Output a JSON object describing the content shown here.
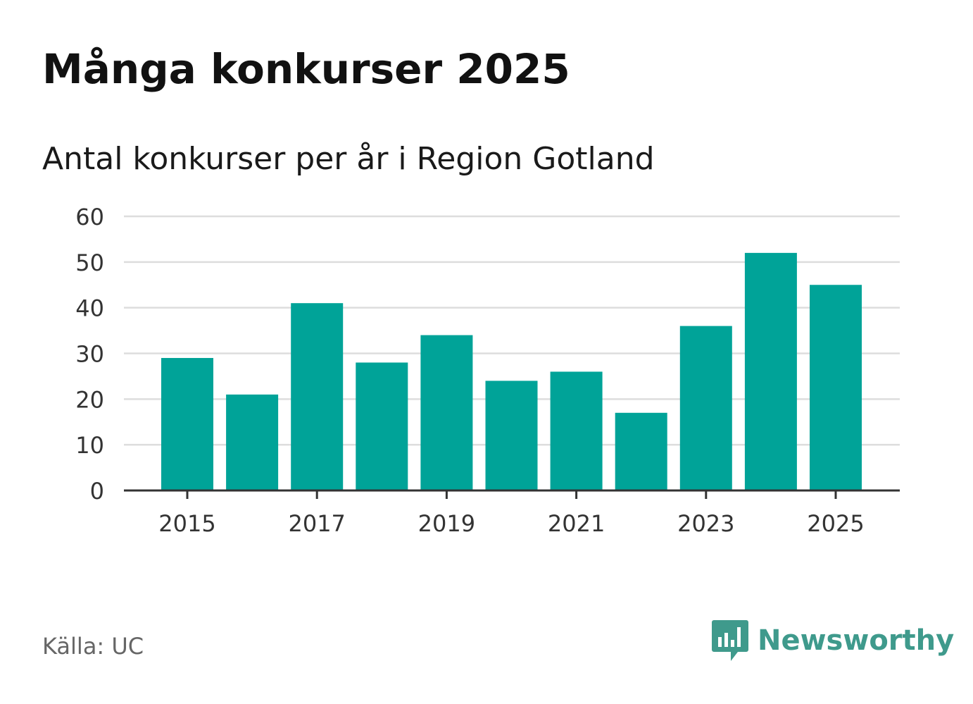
{
  "header": {
    "title": "Många konkurser 2025",
    "subtitle": "Antal konkurser per år i Region Gotland"
  },
  "footer": {
    "source": "Källa: UC",
    "logo_text": "Newsworthy",
    "logo_icon": "newsworthy-chart-bubble-icon",
    "logo_color": "#3f9a8c"
  },
  "chart_data": {
    "type": "bar",
    "categories": [
      "2015",
      "2016",
      "2017",
      "2018",
      "2019",
      "2020",
      "2021",
      "2022",
      "2023",
      "2024",
      "2025"
    ],
    "values": [
      29,
      21,
      41,
      28,
      34,
      24,
      26,
      17,
      36,
      52,
      45
    ],
    "x_tick_labels": [
      "2015",
      "2017",
      "2019",
      "2021",
      "2023",
      "2025"
    ],
    "y_ticks": [
      0,
      10,
      20,
      30,
      40,
      50,
      60
    ],
    "ylim": [
      0,
      60
    ],
    "grid": true,
    "bar_color": "#00a398",
    "grid_color": "#dddddd",
    "axis_color": "#333333"
  }
}
